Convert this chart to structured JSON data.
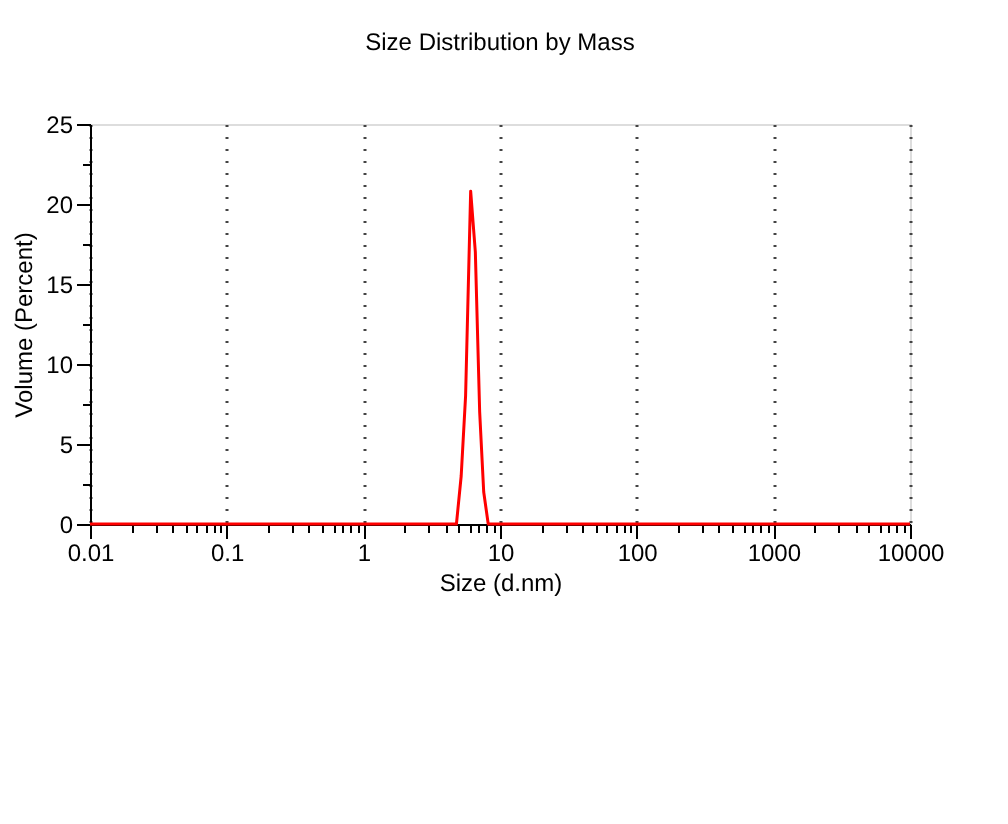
{
  "chart_data": {
    "type": "line",
    "title": "Size Distribution by Mass",
    "xlabel": "Size (d.nm)",
    "ylabel": "Volume (Percent)",
    "log": "x",
    "grid": "x",
    "marker": "none",
    "line_style": "solid",
    "series": [
      {
        "color": "#ff0000",
        "x": [
          0.01,
          4.8,
          5.2,
          5.6,
          6.1,
          6.6,
          7.1,
          7.6,
          8.2,
          10000
        ],
        "values": [
          0,
          0,
          3,
          8,
          20.8,
          17,
          7,
          2,
          0,
          0
        ]
      }
    ],
    "xlim": [
      0.01,
      10000
    ],
    "ylim": [
      0,
      25
    ],
    "xticks": [
      {
        "value": 0.01,
        "label": "0.01"
      },
      {
        "value": 0.02,
        "label": null
      },
      {
        "value": 0.03,
        "label": null
      },
      {
        "value": 0.04,
        "label": null
      },
      {
        "value": 0.05,
        "label": null
      },
      {
        "value": 0.06,
        "label": null
      },
      {
        "value": 0.07,
        "label": null
      },
      {
        "value": 0.08,
        "label": null
      },
      {
        "value": 0.09,
        "label": null
      },
      {
        "value": 0.1,
        "label": "0.1"
      },
      {
        "value": 0.2,
        "label": null
      },
      {
        "value": 0.3,
        "label": null
      },
      {
        "value": 0.4,
        "label": null
      },
      {
        "value": 0.5,
        "label": null
      },
      {
        "value": 0.6,
        "label": null
      },
      {
        "value": 0.7,
        "label": null
      },
      {
        "value": 0.8,
        "label": null
      },
      {
        "value": 0.9,
        "label": null
      },
      1,
      {
        "value": 2,
        "label": null
      },
      {
        "value": 3,
        "label": null
      },
      {
        "value": 4,
        "label": null
      },
      {
        "value": 5,
        "label": null
      },
      {
        "value": 6,
        "label": null
      },
      {
        "value": 7,
        "label": null
      },
      {
        "value": 8,
        "label": null
      },
      {
        "value": 9,
        "label": null
      },
      10,
      {
        "value": 20,
        "label": null
      },
      {
        "value": 30,
        "label": null
      },
      {
        "value": 40,
        "label": null
      },
      {
        "value": 50,
        "label": null
      },
      {
        "value": 60,
        "label": null
      },
      {
        "value": 70,
        "label": null
      },
      {
        "value": 80,
        "label": null
      },
      {
        "value": 90,
        "label": null
      },
      100,
      {
        "value": 200,
        "label": null
      },
      {
        "value": 300,
        "label": null
      },
      {
        "value": 400,
        "label": null
      },
      {
        "value": 500,
        "label": null
      },
      {
        "value": 600,
        "label": null
      },
      {
        "value": 700,
        "label": null
      },
      {
        "value": 800,
        "label": null
      },
      {
        "value": 900,
        "label": null
      },
      1000,
      {
        "value": 2000,
        "label": null
      },
      {
        "value": 3000,
        "label": null
      },
      {
        "value": 4000,
        "label": null
      },
      {
        "value": 5000,
        "label": null
      },
      {
        "value": 6000,
        "label": null
      },
      {
        "value": 7000,
        "label": null
      },
      {
        "value": 8000,
        "label": null
      },
      {
        "value": 9000,
        "label": null
      },
      10000
    ],
    "yticks": [
      0,
      {
        "value": 2.5,
        "label": null
      },
      5,
      {
        "value": 7.5,
        "label": null
      },
      10,
      {
        "value": 12.5,
        "label": null
      },
      15,
      {
        "value": 17.5,
        "label": null
      },
      20,
      {
        "value": 22.5,
        "label": null
      },
      25
    ]
  }
}
